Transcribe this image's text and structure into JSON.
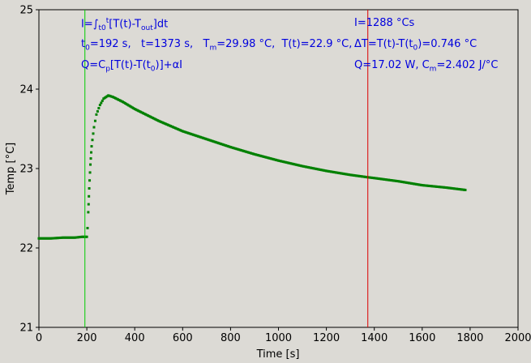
{
  "chart_data": {
    "type": "scatter",
    "xlabel": "Time [s]",
    "ylabel": "Temp [°C]",
    "xlim": [
      0,
      2000
    ],
    "ylim": [
      21,
      25
    ],
    "xticks": [
      0,
      200,
      400,
      600,
      800,
      1000,
      1200,
      1400,
      1600,
      1800,
      2000
    ],
    "yticks": [
      21,
      22,
      23,
      24,
      25
    ],
    "grid": false,
    "series_color": "#008000",
    "vlines": [
      {
        "x": 192,
        "color": "#00cc00"
      },
      {
        "x": 1373,
        "color": "#dd0000"
      }
    ],
    "points": [
      [
        0,
        22.12
      ],
      [
        50,
        22.12
      ],
      [
        100,
        22.13
      ],
      [
        150,
        22.13
      ],
      [
        180,
        22.14
      ],
      [
        200,
        22.14
      ],
      [
        203,
        22.25
      ],
      [
        206,
        22.45
      ],
      [
        210,
        22.75
      ],
      [
        215,
        23.05
      ],
      [
        220,
        23.28
      ],
      [
        230,
        23.52
      ],
      [
        240,
        23.68
      ],
      [
        255,
        23.8
      ],
      [
        270,
        23.88
      ],
      [
        290,
        23.92
      ],
      [
        310,
        23.9
      ],
      [
        350,
        23.84
      ],
      [
        400,
        23.75
      ],
      [
        500,
        23.6
      ],
      [
        600,
        23.47
      ],
      [
        700,
        23.37
      ],
      [
        800,
        23.27
      ],
      [
        900,
        23.18
      ],
      [
        1000,
        23.1
      ],
      [
        1100,
        23.03
      ],
      [
        1200,
        22.97
      ],
      [
        1300,
        22.92
      ],
      [
        1373,
        22.89
      ],
      [
        1400,
        22.88
      ],
      [
        1500,
        22.84
      ],
      [
        1600,
        22.79
      ],
      [
        1700,
        22.76
      ],
      [
        1780,
        22.73
      ]
    ]
  },
  "annotations": {
    "integral_formula": {
      "a": "I=∫",
      "b": "t0",
      "c": "t",
      "d": "[T(t)-T",
      "e": "out",
      "f": "]dt"
    },
    "integral_value": "I=1288 °Cs",
    "params": {
      "t0_label": "t",
      "t0_sub": "0",
      "t0_val": "=192 s,",
      "t_val": "t=1373 s,",
      "tm_label": "T",
      "tm_sub": "m",
      "tm_val": "=29.98 °C,",
      "tt_val": "T(t)=22.9 °C,"
    },
    "delta": {
      "a": "ΔT=T(t)-T(t",
      "sub": "0",
      "b": ")=0.746 °C"
    },
    "q_formula": {
      "a": "Q=C",
      "sub": "p",
      "b": "[T(t)-T(t",
      "sub2": "0",
      "c": ")]+αI"
    },
    "q_value": {
      "a": "Q=17.02 W,   C",
      "sub": "m",
      "b": "=2.402 J/°C"
    }
  }
}
